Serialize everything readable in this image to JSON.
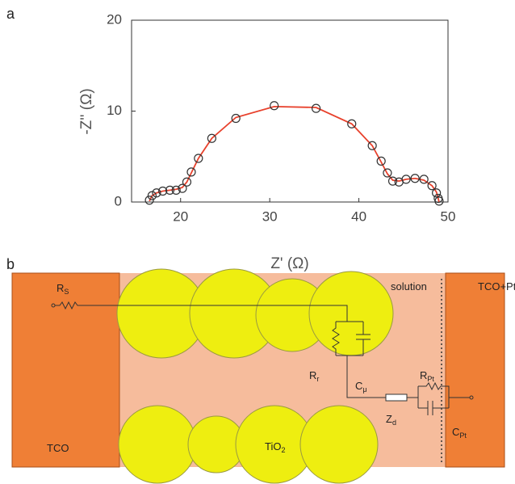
{
  "panel_labels": [
    "a",
    "b"
  ],
  "chart_data": {
    "type": "scatter",
    "x_label": "Z' (Ω)",
    "y_label": "-Z'' (Ω)",
    "xlim": [
      14.5,
      50
    ],
    "ylim": [
      0,
      20
    ],
    "xticks": [
      20,
      30,
      40,
      50
    ],
    "yticks": [
      0,
      10,
      20
    ],
    "grid": false,
    "series": [
      {
        "style": "markers",
        "color": "#333333",
        "x": [
          16.5,
          16.8,
          17.3,
          18.0,
          18.8,
          19.5,
          20.2,
          20.7,
          21.2,
          22.0,
          23.5,
          26.2,
          30.5,
          35.2,
          39.2,
          41.5,
          42.5,
          43.2,
          43.8,
          44.5,
          45.3,
          46.3,
          47.3,
          48.2,
          48.7,
          48.9,
          49.0
        ],
        "values": [
          0.2,
          0.7,
          1.0,
          1.2,
          1.3,
          1.3,
          1.5,
          2.2,
          3.3,
          4.8,
          7.0,
          9.2,
          10.6,
          10.3,
          8.6,
          6.2,
          4.5,
          3.2,
          2.3,
          2.2,
          2.5,
          2.6,
          2.5,
          1.8,
          1.0,
          0.4,
          0.1
        ]
      },
      {
        "style": "line",
        "color": "#e8412c",
        "x": [
          16.5,
          16.8,
          17.3,
          18.0,
          18.8,
          19.5,
          20.2,
          20.7,
          21.2,
          22.0,
          23.5,
          26.2,
          30.5,
          35.2,
          39.2,
          41.5,
          42.5,
          43.2,
          43.8,
          44.5,
          45.3,
          46.3,
          47.3,
          48.2,
          48.7,
          48.9,
          49.0
        ],
        "values": [
          0.1,
          0.7,
          1.0,
          1.2,
          1.3,
          1.4,
          1.6,
          2.2,
          3.2,
          4.8,
          7.0,
          9.3,
          10.5,
          10.4,
          8.6,
          6.2,
          4.4,
          3.1,
          2.4,
          2.3,
          2.5,
          2.6,
          2.4,
          1.8,
          1.1,
          0.4,
          0.0
        ]
      }
    ]
  },
  "diagram": {
    "labels": [
      {
        "text": "R",
        "sub": "S"
      },
      {
        "text": "R",
        "sub": "r"
      },
      {
        "text": "C",
        "sub": "μ"
      },
      {
        "text": "Z",
        "sub": "d"
      },
      {
        "text": "R",
        "sub": "Pt"
      },
      {
        "text": "C",
        "sub": "Pt"
      },
      {
        "text": "TCO"
      },
      {
        "text": "TiO",
        "sub": "2"
      },
      {
        "text": "solution"
      },
      {
        "text": "TCO+Pt"
      }
    ]
  }
}
